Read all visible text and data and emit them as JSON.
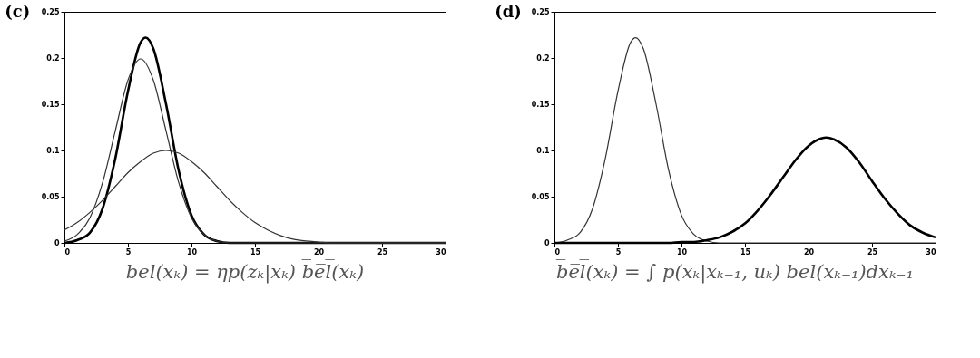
{
  "chart_data": [
    {
      "type": "line",
      "title": "(c)",
      "xlim": [
        0,
        30
      ],
      "ylim": [
        0,
        0.25
      ],
      "xticks": [
        0,
        5,
        10,
        15,
        20,
        25,
        30
      ],
      "yticks": [
        0,
        0.05,
        0.1,
        0.15,
        0.2,
        0.25
      ],
      "grid": false,
      "annotations": [
        "bel(xₖ) = ηp(zₖ|xₖ) b̅e̅l̅(xₖ)"
      ],
      "series": [
        {
          "color": "#000000",
          "x": [
            0,
            1,
            2,
            3,
            4,
            5,
            6,
            6.4,
            7,
            8,
            9,
            10,
            11,
            12,
            13,
            14,
            20,
            30
          ],
          "values": [
            0.0,
            0.003,
            0.011,
            0.037,
            0.091,
            0.164,
            0.217,
            0.222,
            0.21,
            0.15,
            0.078,
            0.03,
            0.009,
            0.002,
            0.0,
            0.0,
            0.0,
            0.0
          ]
        },
        {
          "color": "#333333",
          "x": [
            0,
            1,
            2,
            3,
            4,
            5,
            6,
            7,
            8,
            9,
            10,
            11,
            12,
            13,
            14,
            20,
            30
          ],
          "values": [
            0.002,
            0.009,
            0.027,
            0.065,
            0.121,
            0.176,
            0.199,
            0.176,
            0.121,
            0.065,
            0.027,
            0.009,
            0.002,
            0.0,
            0.0,
            0.0,
            0.0
          ]
        },
        {
          "color": "#333333",
          "x": [
            0,
            1,
            2,
            3,
            4,
            5,
            6,
            7,
            8,
            9,
            10,
            11,
            12,
            13,
            14,
            15,
            16,
            17,
            18,
            19,
            20,
            21,
            22,
            23,
            30
          ],
          "values": [
            0.014,
            0.022,
            0.033,
            0.046,
            0.061,
            0.076,
            0.088,
            0.097,
            0.1,
            0.097,
            0.088,
            0.076,
            0.061,
            0.046,
            0.033,
            0.022,
            0.014,
            0.008,
            0.004,
            0.002,
            0.001,
            0.0,
            0.0,
            0.0,
            0.0
          ]
        }
      ]
    },
    {
      "type": "line",
      "title": "(d)",
      "xlim": [
        0,
        30
      ],
      "ylim": [
        0,
        0.25
      ],
      "xticks": [
        0,
        5,
        10,
        15,
        20,
        25,
        30
      ],
      "yticks": [
        0,
        0.05,
        0.1,
        0.15,
        0.2,
        0.25
      ],
      "grid": false,
      "annotations": [
        "b̅e̅l̅(xₖ) = ∫ p(xₖ|xₖ₋₁, uₖ) bel(xₖ₋₁)dxₖ₋₁"
      ],
      "series": [
        {
          "color": "#333333",
          "x": [
            0,
            1,
            2,
            3,
            4,
            5,
            6,
            6.4,
            7,
            8,
            9,
            10,
            11,
            12,
            13,
            14,
            20,
            30
          ],
          "values": [
            0.0,
            0.003,
            0.011,
            0.037,
            0.091,
            0.164,
            0.217,
            0.222,
            0.21,
            0.15,
            0.078,
            0.03,
            0.009,
            0.002,
            0.0,
            0.0,
            0.0,
            0.0
          ]
        },
        {
          "color": "#000000",
          "x": [
            0,
            5,
            9,
            10,
            11,
            12,
            13,
            14,
            15,
            16,
            17,
            18,
            19,
            20,
            21,
            21.4,
            22,
            23,
            24,
            25,
            26,
            27,
            28,
            29,
            30
          ],
          "values": [
            0.0,
            0.0,
            0.0,
            0.001,
            0.001,
            0.003,
            0.006,
            0.012,
            0.021,
            0.035,
            0.052,
            0.071,
            0.09,
            0.105,
            0.113,
            0.114,
            0.112,
            0.103,
            0.087,
            0.067,
            0.048,
            0.032,
            0.019,
            0.011,
            0.006
          ]
        }
      ]
    }
  ]
}
